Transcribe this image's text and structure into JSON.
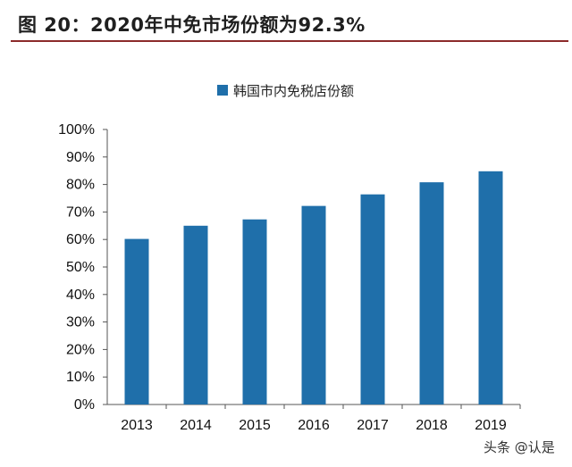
{
  "figure": {
    "title": "图 20：2020年中免市场份额为92.3%"
  },
  "watermark": "头条 @认是",
  "colors": {
    "bar": "#1f6faa",
    "title_rule": "#8c2a2a",
    "axis": "#555555"
  },
  "chart_data": {
    "type": "bar",
    "categories": [
      "2013",
      "2014",
      "2015",
      "2016",
      "2017",
      "2018",
      "2019"
    ],
    "series": [
      {
        "name": "韩国市内免税店份额",
        "values": [
          60.2,
          65.0,
          67.3,
          72.2,
          76.4,
          80.8,
          84.8
        ]
      }
    ],
    "ylim": [
      0,
      100
    ],
    "yticks": [
      "0%",
      "10%",
      "20%",
      "30%",
      "40%",
      "50%",
      "60%",
      "70%",
      "80%",
      "90%",
      "100%"
    ],
    "grid": false,
    "legend_position": "top-center"
  }
}
